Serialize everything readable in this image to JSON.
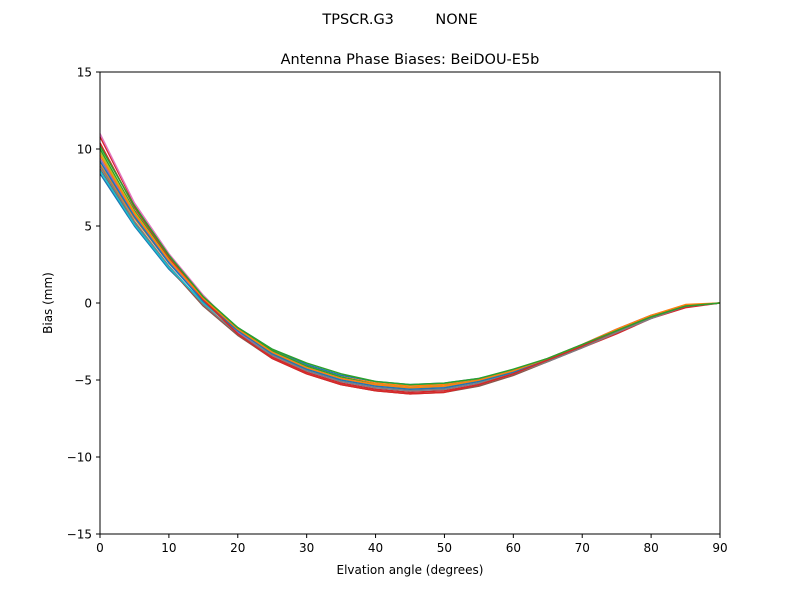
{
  "suptitle": "TPSCR.G3         NONE",
  "chart_data": {
    "type": "line",
    "title": "Antenna Phase Biases: BeiDOU-E5b",
    "xlabel": "Elvation angle (degrees)",
    "ylabel": "Bias (mm)",
    "xlim": [
      0,
      90
    ],
    "ylim": [
      -15,
      15
    ],
    "xticks": [
      0,
      10,
      20,
      30,
      40,
      50,
      60,
      70,
      80,
      90
    ],
    "yticks": [
      -15,
      -10,
      -5,
      0,
      5,
      10,
      15
    ],
    "xtick_labels": [
      "0",
      "10",
      "20",
      "30",
      "40",
      "50",
      "60",
      "70",
      "80",
      "90"
    ],
    "ytick_labels": [
      "−15",
      "−10",
      "−5",
      "0",
      "5",
      "10",
      "15"
    ],
    "grid": false,
    "legend": "none",
    "x": [
      0,
      5,
      10,
      15,
      20,
      25,
      30,
      35,
      40,
      45,
      50,
      55,
      60,
      65,
      70,
      75,
      80,
      85,
      90
    ],
    "series": [
      {
        "color": "#1f77b4",
        "values": [
          8.4,
          5.0,
          2.2,
          0.0,
          -1.6,
          -3.0,
          -4.0,
          -4.7,
          -5.1,
          -5.3,
          -5.2,
          -4.9,
          -4.4,
          -3.6,
          -2.7,
          -1.7,
          -0.8,
          -0.2,
          0.0
        ]
      },
      {
        "color": "#ff7f0e",
        "values": [
          9.0,
          5.5,
          2.6,
          0.2,
          -1.7,
          -3.1,
          -4.1,
          -4.8,
          -5.2,
          -5.4,
          -5.3,
          -5.0,
          -4.5,
          -3.7,
          -2.8,
          -1.8,
          -0.9,
          -0.2,
          0.0
        ]
      },
      {
        "color": "#2ca02c",
        "values": [
          10.0,
          6.0,
          2.9,
          0.4,
          -1.6,
          -3.1,
          -4.1,
          -4.8,
          -5.3,
          -5.5,
          -5.4,
          -5.0,
          -4.4,
          -3.7,
          -2.8,
          -1.9,
          -1.0,
          -0.2,
          0.0
        ]
      },
      {
        "color": "#d62728",
        "values": [
          10.8,
          6.4,
          3.1,
          0.3,
          -1.9,
          -3.5,
          -4.5,
          -5.2,
          -5.6,
          -5.8,
          -5.7,
          -5.3,
          -4.6,
          -3.8,
          -2.9,
          -2.0,
          -1.0,
          -0.3,
          0.0
        ]
      },
      {
        "color": "#9467bd",
        "values": [
          9.4,
          5.7,
          2.7,
          0.1,
          -1.9,
          -3.3,
          -4.4,
          -5.1,
          -5.5,
          -5.7,
          -5.6,
          -5.2,
          -4.6,
          -3.8,
          -2.9,
          -1.9,
          -1.0,
          -0.2,
          0.0
        ]
      },
      {
        "color": "#8c564b",
        "values": [
          8.7,
          5.2,
          2.3,
          -0.2,
          -2.1,
          -3.6,
          -4.6,
          -5.3,
          -5.7,
          -5.9,
          -5.8,
          -5.4,
          -4.7,
          -3.8,
          -2.8,
          -1.8,
          -0.9,
          -0.2,
          0.0
        ]
      },
      {
        "color": "#e377c2",
        "values": [
          11.0,
          6.5,
          3.2,
          0.5,
          -1.8,
          -3.3,
          -4.3,
          -5.0,
          -5.4,
          -5.6,
          -5.5,
          -5.1,
          -4.5,
          -3.7,
          -2.7,
          -1.7,
          -0.8,
          -0.2,
          0.0
        ]
      },
      {
        "color": "#7f7f7f",
        "values": [
          8.9,
          5.3,
          2.4,
          -0.1,
          -2.0,
          -3.4,
          -4.4,
          -5.1,
          -5.5,
          -5.7,
          -5.6,
          -5.2,
          -4.6,
          -3.8,
          -2.9,
          -1.9,
          -1.0,
          -0.2,
          0.0
        ]
      },
      {
        "color": "#bcbd22",
        "values": [
          9.8,
          5.9,
          2.8,
          0.3,
          -1.7,
          -3.2,
          -4.2,
          -4.9,
          -5.3,
          -5.5,
          -5.4,
          -5.1,
          -4.5,
          -3.7,
          -2.8,
          -1.8,
          -0.9,
          -0.2,
          0.0
        ]
      },
      {
        "color": "#17becf",
        "values": [
          8.6,
          5.1,
          2.3,
          0.0,
          -1.8,
          -3.2,
          -4.2,
          -4.9,
          -5.3,
          -5.5,
          -5.4,
          -5.0,
          -4.4,
          -3.6,
          -2.7,
          -1.8,
          -0.9,
          -0.2,
          0.0
        ]
      },
      {
        "color": "#1f77b4",
        "values": [
          9.2,
          5.6,
          2.6,
          0.1,
          -1.8,
          -3.3,
          -4.3,
          -5.0,
          -5.4,
          -5.6,
          -5.5,
          -5.1,
          -4.5,
          -3.7,
          -2.8,
          -1.8,
          -0.9,
          -0.2,
          0.0
        ]
      },
      {
        "color": "#d62728",
        "values": [
          10.4,
          6.2,
          3.0,
          0.2,
          -2.0,
          -3.6,
          -4.6,
          -5.3,
          -5.7,
          -5.9,
          -5.8,
          -5.3,
          -4.6,
          -3.7,
          -2.8,
          -1.8,
          -0.9,
          -0.2,
          0.0
        ]
      },
      {
        "color": "#ff7f0e",
        "values": [
          9.6,
          5.8,
          2.8,
          0.3,
          -1.7,
          -3.2,
          -4.2,
          -4.9,
          -5.3,
          -5.5,
          -5.4,
          -5.0,
          -4.4,
          -3.6,
          -2.7,
          -1.7,
          -0.8,
          -0.1,
          0.0
        ]
      },
      {
        "color": "#2ca02c",
        "values": [
          10.2,
          6.3,
          3.1,
          0.4,
          -1.6,
          -3.0,
          -3.9,
          -4.6,
          -5.1,
          -5.3,
          -5.2,
          -4.9,
          -4.3,
          -3.6,
          -2.7,
          -1.8,
          -0.9,
          -0.2,
          0.0
        ]
      }
    ]
  }
}
